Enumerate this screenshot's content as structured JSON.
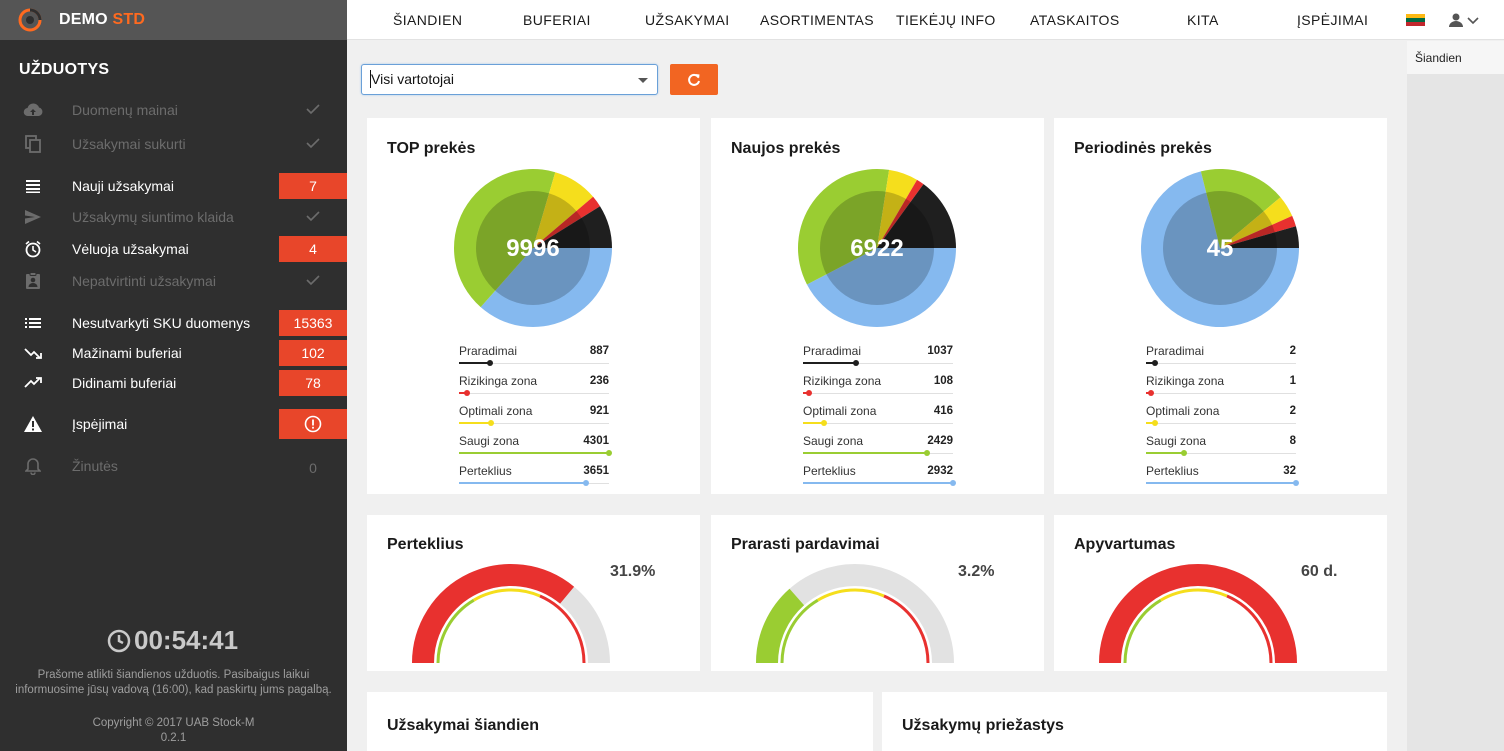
{
  "brand": {
    "name": "DEMO",
    "suffix": "STD",
    "accent": "#ff6a1f"
  },
  "nav": {
    "items": [
      "ŠIANDIEN",
      "BUFERIAI",
      "UŽSAKYMAI",
      "ASORTIMENTAS",
      "TIEKĖJŲ INFO",
      "ATASKAITOS",
      "KITA",
      "ĮSPĖJIMAI"
    ],
    "user_icon": "user-icon"
  },
  "tasks": {
    "title": "UŽDUOTYS",
    "items": [
      {
        "label": "Duomenų mainai",
        "icon": "cloud-upload-icon",
        "status": "done"
      },
      {
        "label": "Užsakymai sukurti",
        "icon": "copy-icon",
        "status": "done"
      },
      {
        "label": "Nauji užsakymai",
        "icon": "list-icon",
        "badge": "7"
      },
      {
        "label": "Užsakymų siuntimo klaida",
        "icon": "send-icon",
        "status": "done"
      },
      {
        "label": "Vėluoja užsakymai",
        "icon": "clock-icon",
        "badge": "4"
      },
      {
        "label": "Nepatvirtinti užsakymai",
        "icon": "clipboard-user-icon",
        "status": "done"
      },
      {
        "label": "Nesutvarkyti SKU duomenys",
        "icon": "bullet-list-icon",
        "badge": "15363"
      },
      {
        "label": "Mažinami buferiai",
        "icon": "trending-down-icon",
        "badge": "102"
      },
      {
        "label": "Didinami buferiai",
        "icon": "trending-up-icon",
        "badge": "78"
      },
      {
        "label": "Įspėjimai",
        "icon": "warning-icon",
        "badge_icon": "alert-circle-icon"
      },
      {
        "label": "Žinutės",
        "icon": "bell-icon",
        "count": "0"
      }
    ]
  },
  "timer": "00:54:41",
  "notice": "Prašome atlikti šiandienos užduotis. Pasibaigus laikui informuosime jūsų vadovą (16:00), kad paskirtų jums pagalbą.",
  "copyright": "Copyright © 2017 UAB Stock-M",
  "version": "0.2.1",
  "filter": {
    "selected": "Visi vartotojai"
  },
  "right_panel": {
    "today": "Šiandien"
  },
  "colors": {
    "loss": "#1f1f1f",
    "risk": "#e8312f",
    "optimal": "#f5de1c",
    "safe": "#9acd32",
    "excess": "#85b9ef",
    "gauge_bg": "#e2e2e2",
    "orange": "#f26522",
    "badge": "#e8462a"
  },
  "legend_labels": [
    "Praradimai",
    "Rizikinga zona",
    "Optimali zona",
    "Saugi zona",
    "Perteklius"
  ],
  "product_cards": [
    {
      "title": "TOP prekės",
      "total": "9996",
      "values": [
        887,
        236,
        921,
        4301,
        3651
      ]
    },
    {
      "title": "Naujos prekės",
      "total": "6922",
      "values": [
        1037,
        108,
        416,
        2429,
        2932
      ]
    },
    {
      "title": "Periodinės prekės",
      "total": "45",
      "values": [
        2,
        1,
        2,
        8,
        32
      ]
    }
  ],
  "gauges": [
    {
      "title": "Perteklius",
      "value": "31.9%",
      "level": 0.72,
      "color": "#e8312f"
    },
    {
      "title": "Prarasti pardavimai",
      "value": "3.2%",
      "level": 0.27,
      "color": "#9acd32"
    },
    {
      "title": "Apyvartumas",
      "value": "60 d.",
      "level": 1.0,
      "color": "#e8312f"
    }
  ],
  "bottom_cards": [
    {
      "title": "Užsakymai šiandien"
    },
    {
      "title": "Užsakymų priežastys"
    }
  ]
}
